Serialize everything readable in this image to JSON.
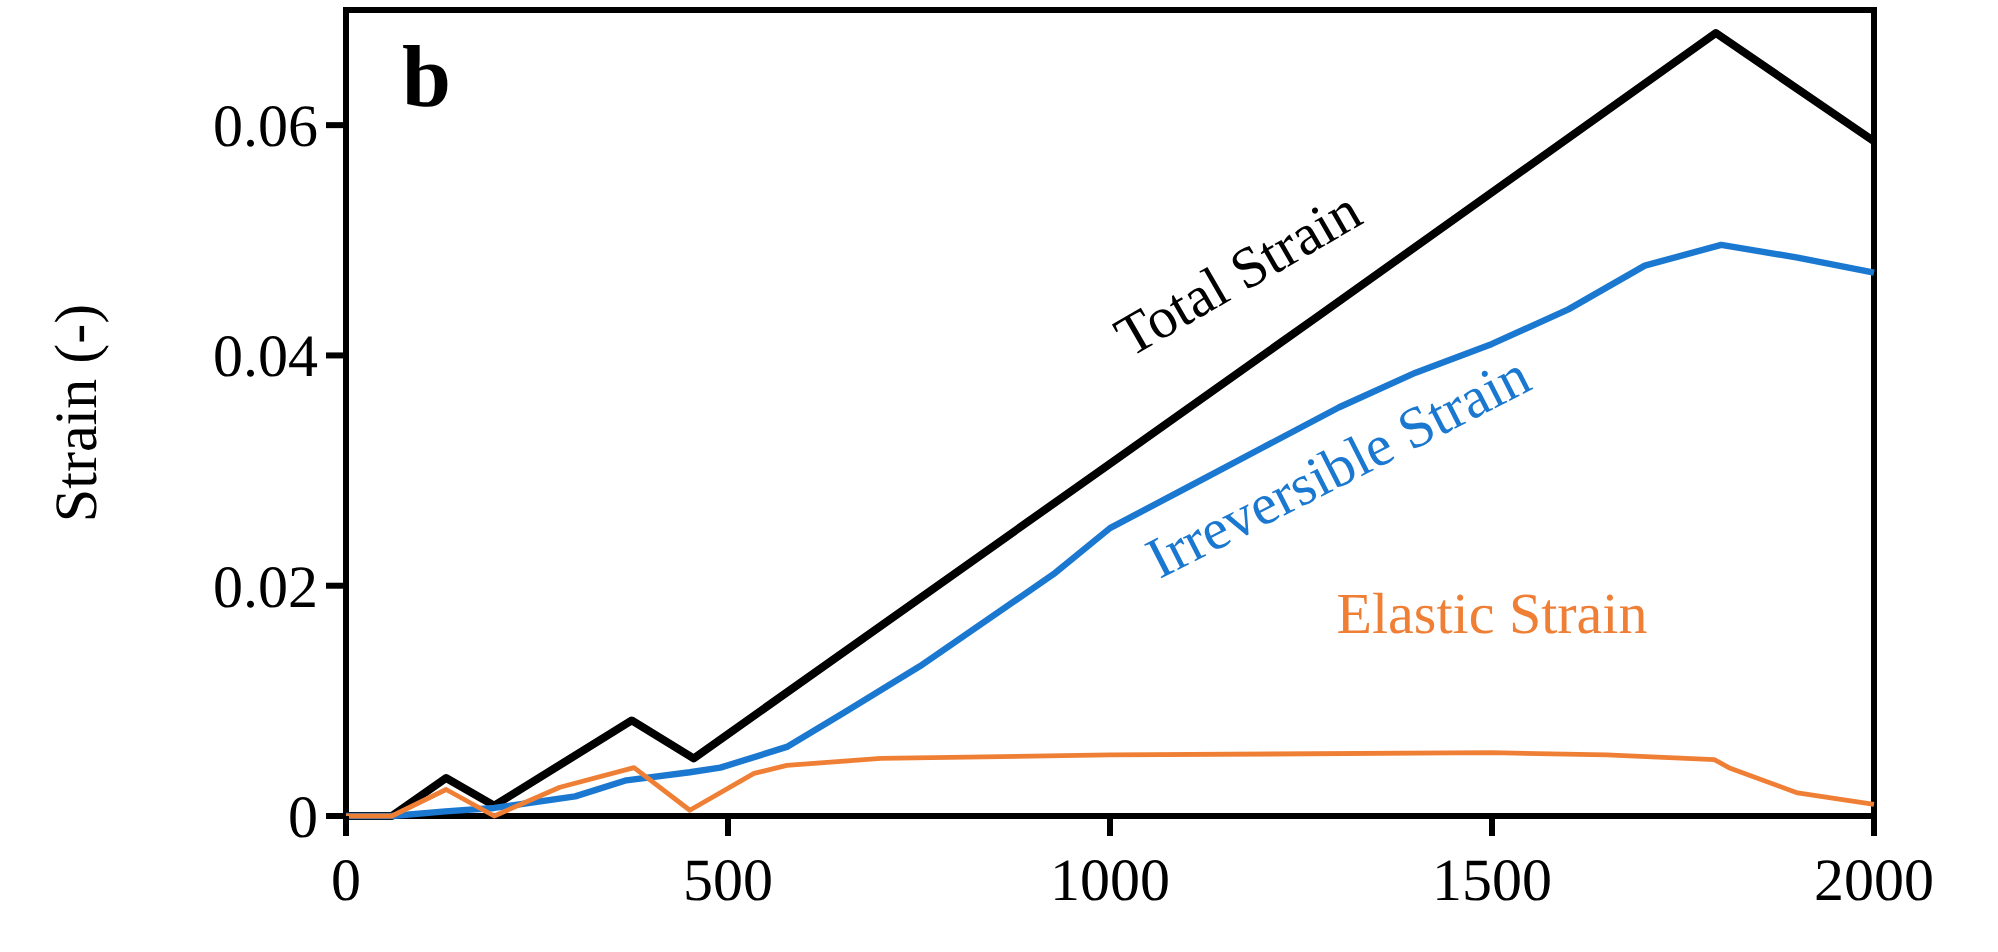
{
  "chart_data": {
    "type": "line",
    "ylabel": "Strain (-)",
    "annotations": [
      "b"
    ],
    "xlim": [
      0,
      2000
    ],
    "xticks": [
      0,
      500,
      1000,
      1500,
      2000
    ],
    "ylim": [
      0,
      0.07
    ],
    "yticks": [
      0,
      0.02,
      0.04,
      0.06
    ],
    "grid": false,
    "legend": false,
    "marker": "none",
    "line_style": "solid",
    "series": [
      {
        "name": "Total Strain",
        "color": "#000000",
        "x": [
          0,
          60,
          131,
          194,
          374,
          455,
          1000,
          1270,
          1793,
          2000
        ],
        "values": [
          0,
          0,
          0.0033,
          0.0009,
          0.0083,
          0.005,
          0.0306,
          0.0433,
          0.068,
          0.0586
        ]
      },
      {
        "name": "Irreversible Strain",
        "color": "#1a78d0",
        "x": [
          0,
          60,
          130,
          194,
          300,
          367,
          450,
          490,
          577,
          650,
          751,
          926,
          1000,
          1100,
          1200,
          1300,
          1400,
          1500,
          1600,
          1700,
          1800,
          1900,
          2000
        ],
        "values": [
          0,
          0,
          0.0004,
          0.0007,
          0.0017,
          0.0031,
          0.0038,
          0.0042,
          0.006,
          0.0089,
          0.013,
          0.021,
          0.025,
          0.0285,
          0.032,
          0.0355,
          0.0385,
          0.041,
          0.044,
          0.0478,
          0.0496,
          0.0485,
          0.0472
        ]
      },
      {
        "name": "Elastic Strain",
        "color": "#f07f36",
        "x": [
          0,
          60,
          131,
          194,
          280,
          377,
          450,
          534,
          577,
          700,
          1000,
          1500,
          1650,
          1791,
          1810,
          1900,
          2000
        ],
        "values": [
          0,
          0,
          0.0023,
          0,
          0.0025,
          0.0042,
          0.0005,
          0.0037,
          0.0044,
          0.005,
          0.0053,
          0.0055,
          0.0053,
          0.0049,
          0.0042,
          0.002,
          0.001
        ]
      }
    ]
  }
}
